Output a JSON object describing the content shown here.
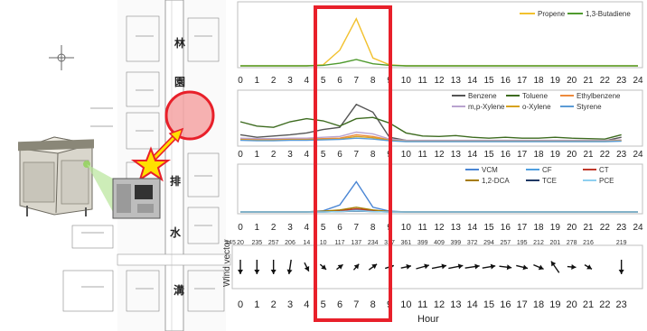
{
  "map": {
    "labels": [
      "林",
      "園",
      "排",
      "水",
      "溝"
    ],
    "wind_label": "Wind vector"
  },
  "colors": {
    "highlight_box": "#e8202a",
    "propene": "#f2c12e",
    "butadiene": "#4f9a2e",
    "benzene": "#555555",
    "toluene": "#3d6b1f",
    "ethylbenzene": "#ed8a3c",
    "mpxylene": "#b9a3cf",
    "oxylene": "#d6a21e",
    "styrene": "#5b9bd5",
    "vcm": "#4a86d4",
    "cf": "#4f9fe0",
    "ct": "#c0392b",
    "dca": "#a67c00",
    "tce": "#1f3864",
    "pce": "#8fd0f0",
    "arrow": "#111111",
    "star_fill": "#ffe000",
    "star_stroke": "#e8202a",
    "circle_fill": "#f5a3a3"
  },
  "x_ticks": [
    "0",
    "1",
    "2",
    "3",
    "4",
    "5",
    "6",
    "7",
    "8",
    "9",
    "10",
    "11",
    "12",
    "13",
    "14",
    "15",
    "16",
    "17",
    "18",
    "19",
    "20",
    "21",
    "22",
    "23",
    "24"
  ],
  "x_label": "Hour",
  "chart_data": [
    {
      "type": "line",
      "x": [
        0,
        1,
        2,
        3,
        4,
        5,
        6,
        7,
        8,
        9,
        10,
        11,
        12,
        13,
        14,
        15,
        16,
        17,
        18,
        19,
        20,
        21,
        22,
        23,
        24
      ],
      "ylim": [
        0,
        1
      ],
      "series": [
        {
          "name": "Propene",
          "values": [
            0,
            0,
            0,
            0,
            0,
            0.02,
            0.3,
            0.9,
            0.15,
            0.02,
            0,
            0,
            0,
            0,
            0,
            0,
            0,
            0,
            0,
            0,
            0,
            0,
            0,
            0,
            0
          ]
        },
        {
          "name": "1,3-Butadiene",
          "values": [
            0,
            0,
            0,
            0,
            0,
            0.01,
            0.05,
            0.12,
            0.04,
            0.01,
            0,
            0,
            0,
            0,
            0,
            0,
            0,
            0,
            0,
            0,
            0,
            0,
            0,
            0,
            0
          ]
        }
      ],
      "legend": "top-right"
    },
    {
      "type": "line",
      "x": [
        0,
        1,
        2,
        3,
        4,
        5,
        6,
        7,
        8,
        9,
        10,
        11,
        12,
        13,
        14,
        15,
        16,
        17,
        18,
        19,
        20,
        21,
        22,
        23
      ],
      "ylim": [
        0,
        1
      ],
      "series": [
        {
          "name": "Benzene",
          "values": [
            0.18,
            0.12,
            0.15,
            0.18,
            0.22,
            0.3,
            0.35,
            0.88,
            0.7,
            0.12,
            0.05,
            0.04,
            0.04,
            0.04,
            0.04,
            0.04,
            0.04,
            0.04,
            0.04,
            0.04,
            0.04,
            0.04,
            0.04,
            0.12
          ]
        },
        {
          "name": "Toluene",
          "values": [
            0.48,
            0.38,
            0.35,
            0.48,
            0.55,
            0.5,
            0.38,
            0.55,
            0.58,
            0.45,
            0.22,
            0.15,
            0.14,
            0.16,
            0.12,
            0.1,
            0.12,
            0.1,
            0.1,
            0.12,
            0.1,
            0.09,
            0.08,
            0.18
          ]
        },
        {
          "name": "Ethylbenzene",
          "values": [
            0.08,
            0.07,
            0.07,
            0.08,
            0.08,
            0.09,
            0.1,
            0.18,
            0.14,
            0.06,
            0.04,
            0.04,
            0.04,
            0.04,
            0.04,
            0.04,
            0.04,
            0.04,
            0.04,
            0.04,
            0.04,
            0.04,
            0.04,
            0.05
          ]
        },
        {
          "name": "m,p-Xylene",
          "values": [
            0.1,
            0.09,
            0.09,
            0.1,
            0.1,
            0.12,
            0.14,
            0.24,
            0.2,
            0.08,
            0.05,
            0.05,
            0.05,
            0.05,
            0.05,
            0.05,
            0.05,
            0.05,
            0.05,
            0.05,
            0.05,
            0.05,
            0.05,
            0.06
          ]
        },
        {
          "name": "o-Xylene",
          "values": [
            0.06,
            0.05,
            0.05,
            0.06,
            0.06,
            0.07,
            0.08,
            0.14,
            0.11,
            0.05,
            0.03,
            0.03,
            0.03,
            0.03,
            0.03,
            0.03,
            0.03,
            0.03,
            0.03,
            0.03,
            0.03,
            0.03,
            0.03,
            0.04
          ]
        },
        {
          "name": "Styrene",
          "values": [
            0.05,
            0.04,
            0.04,
            0.05,
            0.05,
            0.06,
            0.07,
            0.1,
            0.08,
            0.04,
            0.02,
            0.02,
            0.02,
            0.02,
            0.02,
            0.02,
            0.02,
            0.02,
            0.02,
            0.02,
            0.02,
            0.02,
            0.02,
            0.03
          ]
        }
      ],
      "legend": "top-right"
    },
    {
      "type": "line",
      "x": [
        0,
        1,
        2,
        3,
        4,
        5,
        6,
        7,
        8,
        9,
        10,
        11,
        12,
        13,
        14,
        15,
        16,
        17,
        18,
        19,
        20,
        21,
        22,
        23,
        24
      ],
      "ylim": [
        0,
        1
      ],
      "series": [
        {
          "name": "VCM",
          "values": [
            0,
            0,
            0,
            0,
            0,
            0.03,
            0.18,
            0.78,
            0.12,
            0.02,
            0,
            0,
            0,
            0,
            0,
            0,
            0,
            0,
            0,
            0,
            0,
            0,
            0,
            0,
            0
          ]
        },
        {
          "name": "CF",
          "values": [
            0,
            0,
            0,
            0,
            0,
            0.01,
            0.02,
            0.05,
            0.02,
            0.01,
            0,
            0,
            0,
            0,
            0,
            0,
            0,
            0,
            0,
            0,
            0,
            0,
            0,
            0,
            0
          ]
        },
        {
          "name": "CT",
          "values": [
            0,
            0,
            0,
            0,
            0,
            0.01,
            0.03,
            0.08,
            0.04,
            0.01,
            0,
            0,
            0,
            0,
            0,
            0,
            0,
            0,
            0,
            0,
            0,
            0,
            0,
            0,
            0
          ]
        },
        {
          "name": "1,2-DCA",
          "values": [
            0,
            0,
            0,
            0,
            0,
            0.02,
            0.05,
            0.12,
            0.05,
            0.01,
            0,
            0,
            0,
            0,
            0,
            0,
            0,
            0,
            0,
            0,
            0,
            0,
            0,
            0,
            0
          ]
        },
        {
          "name": "TCE",
          "values": [
            0,
            0,
            0,
            0,
            0,
            0,
            0.01,
            0.02,
            0.01,
            0,
            0,
            0,
            0,
            0,
            0,
            0,
            0,
            0,
            0,
            0,
            0,
            0,
            0,
            0,
            0
          ]
        },
        {
          "name": "PCE",
          "values": [
            0,
            0,
            0,
            0,
            0,
            0,
            0.01,
            0.03,
            0.01,
            0,
            0,
            0,
            0,
            0,
            0,
            0,
            0,
            0,
            0,
            0,
            0,
            0,
            0,
            0,
            0
          ]
        }
      ],
      "legend": "top-right"
    },
    {
      "type": "scatter",
      "title": "",
      "xlabel": "Hour",
      "ylabel": "Wind vector",
      "hours": [
        0,
        1,
        2,
        3,
        4,
        5,
        6,
        7,
        8,
        9,
        10,
        11,
        12,
        13,
        14,
        15,
        16,
        17,
        18,
        19,
        20,
        21,
        23
      ],
      "direction_labels": [
        "20",
        "235",
        "257",
        "206",
        "14",
        "10",
        "117",
        "137",
        "234",
        "317",
        "361",
        "399",
        "409",
        "399",
        "372",
        "294",
        "257",
        "195",
        "212",
        "201",
        "278",
        "216",
        "219"
      ],
      "first_label": "145",
      "wind_dx": [
        0,
        0,
        0,
        -0.15,
        0.3,
        0.35,
        0.4,
        0.35,
        0.55,
        0.6,
        0.7,
        0.9,
        1.0,
        1.0,
        1.0,
        0.9,
        0.85,
        0.8,
        0.7,
        -0.55,
        0.6,
        0.5,
        0
      ],
      "wind_dy": [
        1,
        1,
        1,
        1,
        0.6,
        0.3,
        -0.3,
        -0.4,
        -0.4,
        -0.2,
        -0.15,
        -0.25,
        -0.2,
        -0.2,
        -0.15,
        -0.15,
        0.1,
        0.2,
        0.3,
        -0.8,
        0.05,
        0.3,
        1
      ]
    }
  ]
}
